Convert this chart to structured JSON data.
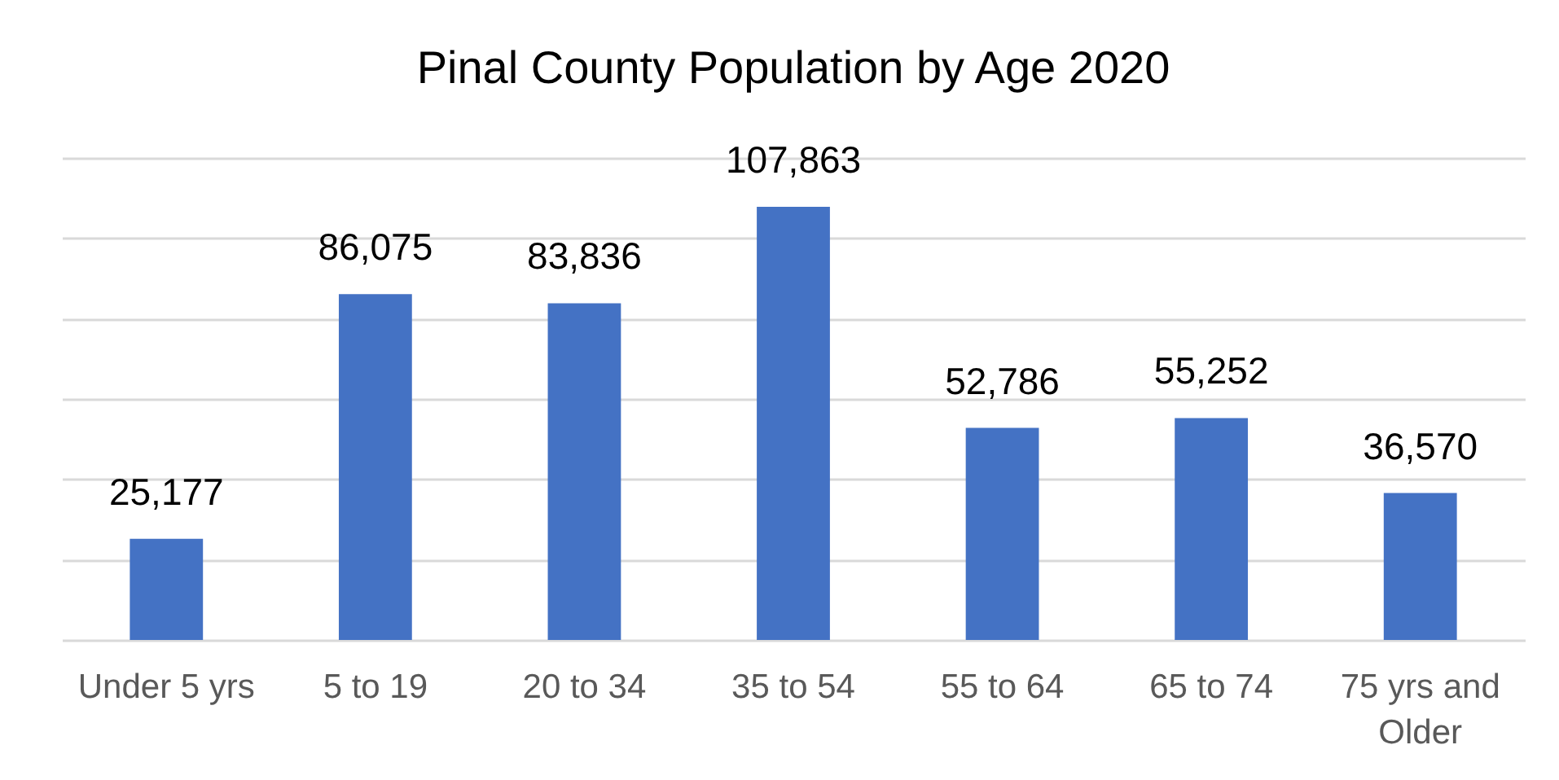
{
  "chart_data": {
    "type": "bar",
    "title": "Pinal County Population by Age 2020",
    "categories": [
      "Under 5 yrs",
      "5 to 19",
      "20 to 34",
      "35 to 54",
      "55 to 64",
      "65 to 74",
      "75 yrs and Older"
    ],
    "values": [
      25177,
      86075,
      83836,
      107863,
      52786,
      55252,
      36570
    ],
    "value_labels": [
      "25,177",
      "86,075",
      "83,836",
      "107,863",
      "52,786",
      "55,252",
      "36,570"
    ],
    "color": "#4472c4",
    "grid": "y",
    "tick_labels": "x"
  }
}
